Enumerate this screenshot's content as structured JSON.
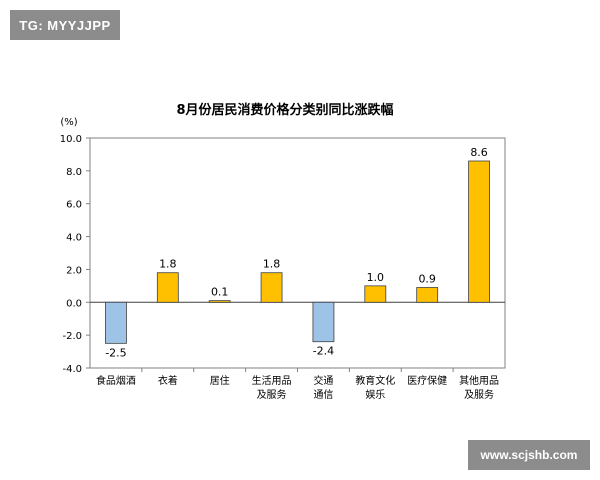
{
  "watermark": {
    "tag": "TG: MYYJJPP",
    "site": "www.scjshb.com"
  },
  "chart_data": {
    "type": "bar",
    "title": "8月份居民消费价格分类别同比涨跌幅",
    "unit_label": "(%)",
    "categories": [
      [
        "食品烟酒"
      ],
      [
        "衣着"
      ],
      [
        "居住"
      ],
      [
        "生活用品",
        "及服务"
      ],
      [
        "交通",
        "通信"
      ],
      [
        "教育文化",
        "娱乐"
      ],
      [
        "医疗保健"
      ],
      [
        "其他用品",
        "及服务"
      ]
    ],
    "values": [
      -2.5,
      1.8,
      0.1,
      1.8,
      -2.4,
      1.0,
      0.9,
      8.6
    ],
    "value_labels": [
      "-2.5",
      "1.8",
      "0.1",
      "1.8",
      "-2.4",
      "1.0",
      "0.9",
      "8.6"
    ],
    "ylim": [
      -4.0,
      10.0
    ],
    "yticks": [
      "10.0",
      "8.0",
      "6.0",
      "4.0",
      "2.0",
      "0.0",
      "-2.0",
      "-4.0"
    ],
    "ytick_values": [
      10,
      8,
      6,
      4,
      2,
      0,
      -2,
      -4
    ],
    "grid": false,
    "colors": {
      "positive": "#FFC000",
      "negative": "#9DC3E6",
      "border": "#404040"
    }
  }
}
